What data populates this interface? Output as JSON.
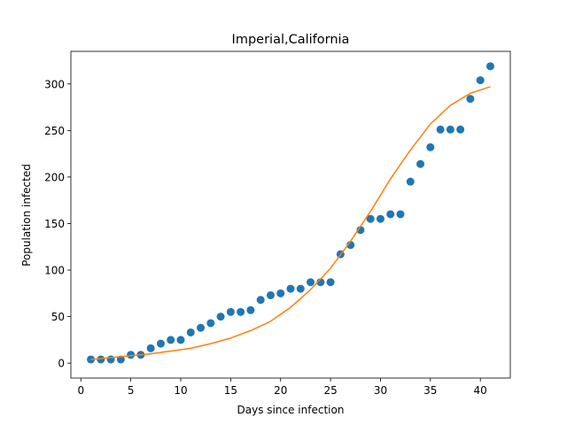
{
  "chart_data": {
    "type": "scatter",
    "title": "Imperial,California",
    "xlabel": "Days since infection",
    "ylabel": "Population infected",
    "xlim": [
      -1.0,
      43.0
    ],
    "ylim": [
      -16.0,
      335.0
    ],
    "xticks": [
      0,
      5,
      10,
      15,
      20,
      25,
      30,
      35,
      40
    ],
    "yticks": [
      0,
      50,
      100,
      150,
      200,
      250,
      300
    ],
    "grid": false,
    "legend": "none",
    "series": [
      {
        "kind": "scatter",
        "color": "#1f77b4",
        "x": [
          1,
          2,
          3,
          4,
          5,
          6,
          7,
          8,
          9,
          10,
          11,
          12,
          13,
          14,
          15,
          16,
          17,
          18,
          19,
          20,
          21,
          22,
          23,
          24,
          25,
          26,
          27,
          28,
          29,
          30,
          31,
          32,
          33,
          34,
          35,
          36,
          37,
          38,
          39,
          40,
          41
        ],
        "y": [
          4,
          4,
          4,
          4,
          9,
          9,
          16,
          21,
          25,
          25,
          33,
          38,
          43,
          50,
          55,
          55,
          57,
          68,
          73,
          75,
          80,
          80,
          87,
          87,
          87,
          117,
          127,
          143,
          155,
          155,
          160,
          160,
          195,
          214,
          232,
          251,
          251,
          251,
          284,
          304,
          319
        ]
      },
      {
        "kind": "line",
        "color": "#ff7f0e",
        "x": [
          1,
          3,
          5,
          7,
          9,
          11,
          13,
          15,
          17,
          19,
          21,
          23,
          25,
          27,
          29,
          31,
          33,
          35,
          37,
          39,
          41
        ],
        "y": [
          4,
          6,
          8,
          10,
          13,
          16,
          21,
          27,
          35,
          45,
          60,
          79,
          102,
          131,
          163,
          198,
          229,
          257,
          277,
          290,
          297
        ]
      }
    ]
  }
}
